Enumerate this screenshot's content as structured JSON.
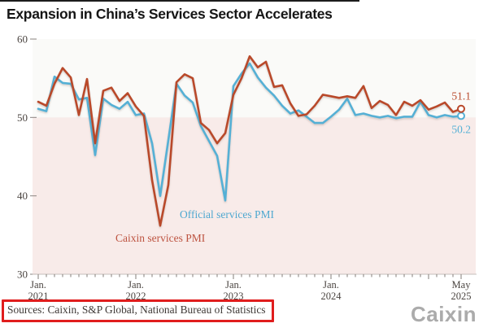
{
  "title": "Expansion in China’s Services Sector Accelerates",
  "source_note": "Sources: Caixin, S&P Global, National Bureau of Statistics",
  "logo_text": "Caixin",
  "colors": {
    "caixin_line": "#b9492b",
    "official_line": "#55b0d5",
    "below_50_band": "#f8ebe9",
    "plot_background": "#fafaf8",
    "highlight_box_red": "#e01d1d",
    "axis_text": "#4a4440",
    "axis_line": "#c6bfbb",
    "tick_mark": "#837c78",
    "title_text": "#161616",
    "logo_gray": "#ababab"
  },
  "chart_data": {
    "type": "line",
    "title": "Expansion in China’s Services Sector Accelerates",
    "xlabel": "",
    "ylabel": "",
    "ylim": [
      30,
      60
    ],
    "y_ticks": [
      60,
      50,
      40,
      30
    ],
    "reference_level": 50,
    "grid": false,
    "legend_position": "inline-labels",
    "categories": [
      "2021-01",
      "2021-02",
      "2021-03",
      "2021-04",
      "2021-05",
      "2021-06",
      "2021-07",
      "2021-08",
      "2021-09",
      "2021-10",
      "2021-11",
      "2021-12",
      "2022-01",
      "2022-02",
      "2022-03",
      "2022-04",
      "2022-05",
      "2022-06",
      "2022-07",
      "2022-08",
      "2022-09",
      "2022-10",
      "2022-11",
      "2022-12",
      "2023-01",
      "2023-02",
      "2023-03",
      "2023-04",
      "2023-05",
      "2023-06",
      "2023-07",
      "2023-08",
      "2023-09",
      "2023-10",
      "2023-11",
      "2023-12",
      "2024-01",
      "2024-02",
      "2024-03",
      "2024-04",
      "2024-05",
      "2024-06",
      "2024-07",
      "2024-08",
      "2024-09",
      "2024-10",
      "2024-11",
      "2024-12",
      "2025-01",
      "2025-02",
      "2025-03",
      "2025-04",
      "2025-05"
    ],
    "x_axis_ticks": [
      {
        "month_index": 0,
        "line1": "Jan.",
        "line2": "2021"
      },
      {
        "month_index": 12,
        "line1": "Jan.",
        "line2": "2022"
      },
      {
        "month_index": 24,
        "line1": "Jan.",
        "line2": "2023"
      },
      {
        "month_index": 36,
        "line1": "Jan.",
        "line2": "2024"
      },
      {
        "month_index": 52,
        "line1": "May",
        "line2": "2025"
      }
    ],
    "series": [
      {
        "name": "Official services PMI",
        "color": "#55b0d5",
        "label_color": "#4fa8d0",
        "end_label": "50.2",
        "values": [
          51.1,
          50.8,
          55.2,
          54.4,
          54.3,
          52.3,
          52.5,
          45.2,
          52.4,
          51.6,
          51.1,
          52.0,
          50.3,
          50.5,
          46.7,
          40.0,
          47.1,
          54.3,
          52.8,
          51.9,
          48.9,
          47.0,
          45.1,
          39.4,
          54.0,
          55.6,
          56.9,
          55.1,
          53.8,
          52.8,
          51.5,
          50.5,
          50.9,
          50.1,
          49.3,
          49.3,
          50.1,
          51.0,
          52.4,
          50.3,
          50.5,
          50.2,
          50.0,
          50.2,
          49.9,
          50.1,
          50.1,
          52.0,
          50.3,
          50.0,
          50.3,
          50.1,
          50.2
        ]
      },
      {
        "name": "Caixin services PMI",
        "color": "#b9492b",
        "label_color": "#bd5340",
        "end_label": "51.1",
        "values": [
          52.0,
          51.5,
          54.3,
          56.3,
          55.1,
          50.3,
          54.9,
          46.7,
          53.4,
          53.8,
          52.1,
          53.1,
          51.4,
          50.2,
          42.0,
          36.2,
          41.4,
          54.5,
          55.5,
          55.0,
          49.3,
          48.4,
          46.7,
          48.0,
          52.9,
          55.0,
          57.8,
          56.4,
          57.1,
          53.9,
          54.1,
          51.8,
          50.2,
          50.4,
          51.5,
          52.9,
          52.7,
          52.5,
          52.7,
          52.5,
          54.0,
          51.2,
          52.1,
          51.6,
          50.3,
          52.0,
          51.5,
          52.2,
          51.0,
          51.4,
          51.9,
          50.7,
          51.1
        ]
      }
    ]
  }
}
